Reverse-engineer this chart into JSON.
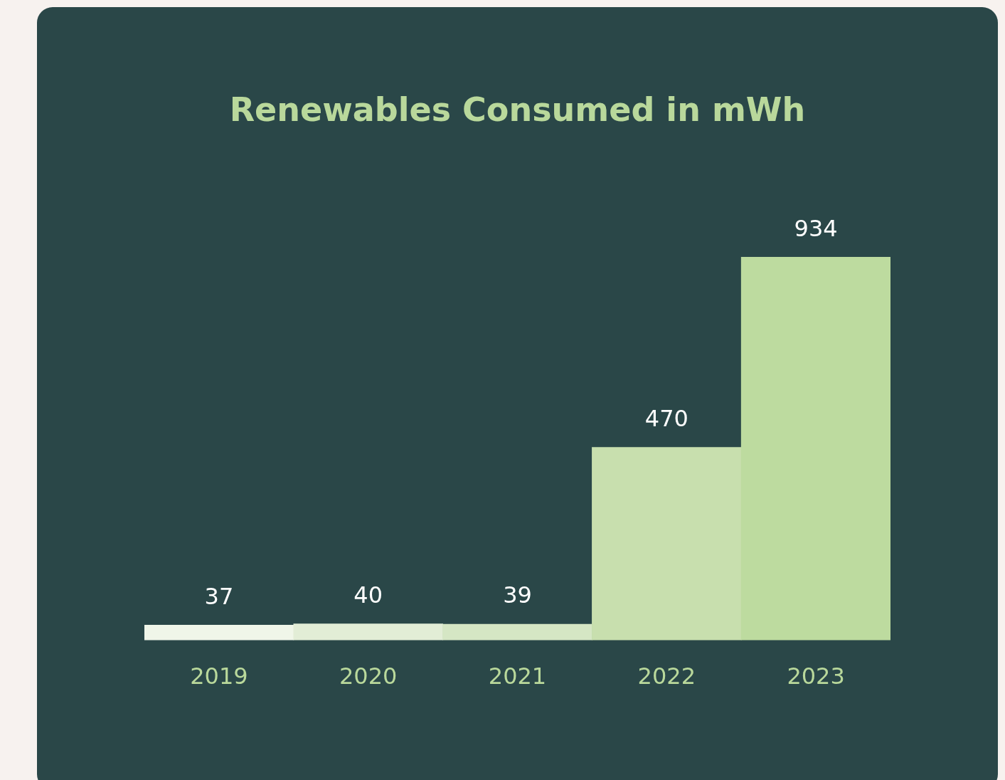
{
  "chart_data": {
    "type": "bar",
    "title": "Renewables Consumed in mWh",
    "categories": [
      "2019",
      "2020",
      "2021",
      "2022",
      "2023"
    ],
    "values": [
      37,
      40,
      39,
      470,
      934
    ],
    "colors": [
      "#f0f6e9",
      "#e2edd6",
      "#d5e6c4",
      "#c8dfae",
      "#bddb9f"
    ],
    "data_labels": true,
    "grid": false,
    "legend": false
  }
}
